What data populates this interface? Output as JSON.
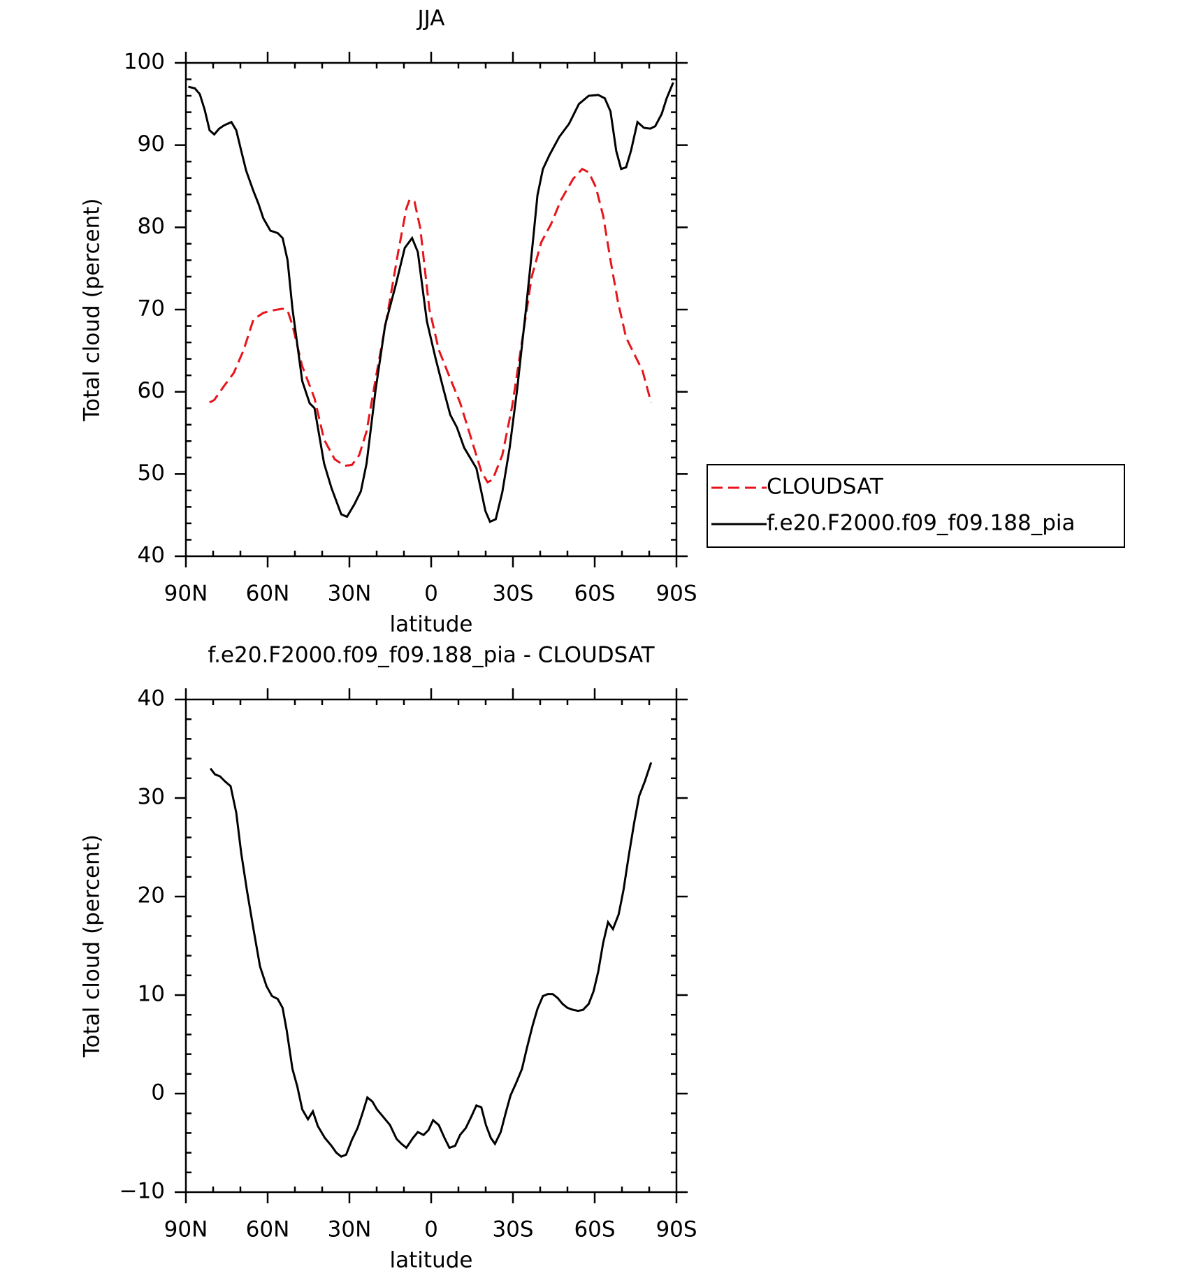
{
  "chart_data": [
    {
      "type": "line",
      "title": "JJA",
      "xlabel": "latitude",
      "ylabel": "Total cloud (percent)",
      "xlim": [
        90,
        -90
      ],
      "xticks": [
        {
          "value": 90,
          "label": "90N"
        },
        {
          "value": 60,
          "label": "60N"
        },
        {
          "value": 30,
          "label": "30N"
        },
        0,
        {
          "value": -30,
          "label": "30S"
        },
        {
          "value": -60,
          "label": "60S"
        },
        {
          "value": -90,
          "label": "90S"
        }
      ],
      "x_minor_per_major": 3,
      "ylim": [
        40,
        100
      ],
      "yticks": [
        40,
        50,
        60,
        70,
        80,
        90,
        100
      ],
      "y_minor_per_major": 5,
      "legend": "outside-right",
      "series": [
        {
          "name": "CLOUDSAT",
          "color": "#e8141b",
          "dash": true,
          "x": [
            81.3,
            79.6,
            76.0,
            72.4,
            68.8,
            65.2,
            61.6,
            58.1,
            54.5,
            52.7,
            50.9,
            47.3,
            42.8,
            39.3,
            35.4,
            31.8,
            29.1,
            26.4,
            23.7,
            20.1,
            15.7,
            12.1,
            9.1,
            7.9,
            6.1,
            4.0,
            0.7,
            -2.8,
            -7.0,
            -10.6,
            -14.8,
            -18.4,
            -20.7,
            -22.5,
            -26.1,
            -29.7,
            -33.3,
            -36.9,
            -40.4,
            -44.0,
            -47.6,
            -52.1,
            -55.4,
            -57.8,
            -60.4,
            -63.1,
            -65.8,
            -68.5,
            -71.5,
            -74.5,
            -77.5,
            -80.7
          ],
          "values": [
            58.7,
            59.0,
            60.7,
            62.3,
            65.1,
            68.8,
            69.6,
            69.9,
            70.1,
            69.9,
            68.1,
            63.1,
            59.2,
            54.2,
            51.8,
            51.0,
            51.1,
            52.3,
            55.2,
            62.1,
            70.1,
            77.0,
            82.3,
            83.4,
            83.1,
            79.9,
            70.1,
            65.1,
            61.6,
            58.7,
            54.2,
            50.3,
            49.0,
            49.3,
            52.3,
            58.2,
            66.1,
            74.0,
            78.2,
            80.4,
            83.3,
            85.9,
            87.1,
            86.7,
            84.9,
            81.4,
            76.0,
            71.0,
            66.6,
            64.6,
            62.6,
            58.7
          ]
        },
        {
          "name": "f.e20.F2000.f09_f09.188_pia",
          "color": "#000000",
          "dash": false,
          "x": [
            89.1,
            86.7,
            84.9,
            83.1,
            81.3,
            79.6,
            77.8,
            76.0,
            73.3,
            71.5,
            69.7,
            67.9,
            65.2,
            63.4,
            61.6,
            59.0,
            56.3,
            54.5,
            52.7,
            50.9,
            47.3,
            44.6,
            42.8,
            39.3,
            36.6,
            33.0,
            30.9,
            28.2,
            25.8,
            23.7,
            20.4,
            16.9,
            13.0,
            9.7,
            7.0,
            4.9,
            1.6,
            -1.6,
            -4.6,
            -7.0,
            -9.4,
            -12.1,
            -16.6,
            -19.9,
            -21.6,
            -23.7,
            -26.1,
            -28.8,
            -31.5,
            -34.8,
            -37.5,
            -39.0,
            -41.0,
            -43.4,
            -47.0,
            -50.6,
            -54.2,
            -57.8,
            -61.3,
            -63.7,
            -65.8,
            -67.9,
            -69.7,
            -71.5,
            -73.3,
            -75.7,
            -78.1,
            -80.4,
            -82.2,
            -84.6,
            -86.4,
            -88.8
          ],
          "values": [
            97.1,
            96.9,
            96.2,
            94.3,
            91.8,
            91.3,
            92.0,
            92.4,
            92.8,
            91.8,
            89.3,
            86.9,
            84.4,
            82.9,
            81.1,
            79.6,
            79.3,
            78.7,
            76.0,
            70.1,
            61.3,
            58.6,
            58.0,
            51.3,
            48.3,
            45.1,
            44.8,
            46.3,
            47.9,
            51.3,
            60.2,
            68.1,
            73.0,
            77.5,
            78.7,
            77.0,
            68.6,
            64.1,
            60.2,
            57.2,
            55.7,
            53.2,
            50.7,
            45.5,
            44.2,
            44.5,
            47.8,
            53.2,
            60.2,
            70.1,
            78.9,
            83.9,
            87.1,
            88.8,
            91.0,
            92.6,
            95.0,
            96.0,
            96.1,
            95.7,
            94.1,
            89.3,
            87.1,
            87.3,
            89.3,
            92.8,
            92.1,
            92.0,
            92.3,
            93.8,
            95.7,
            97.6
          ]
        }
      ]
    },
    {
      "type": "line",
      "title": "f.e20.F2000.f09_f09.188_pia - CLOUDSAT",
      "xlabel": "latitude",
      "ylabel": "Total cloud (percent)",
      "xlim": [
        90,
        -90
      ],
      "xticks": [
        {
          "value": 90,
          "label": "90N"
        },
        {
          "value": 60,
          "label": "60N"
        },
        {
          "value": 30,
          "label": "30N"
        },
        0,
        {
          "value": -30,
          "label": "30S"
        },
        {
          "value": -60,
          "label": "60S"
        },
        {
          "value": -90,
          "label": "90S"
        }
      ],
      "x_minor_per_major": 3,
      "ylim": [
        -10,
        40
      ],
      "yticks": [
        {
          "value": -10,
          "label": "−10"
        },
        0,
        10,
        20,
        30,
        40
      ],
      "y_minor_per_major": 5,
      "series": [
        {
          "color": "#000000",
          "dash": false,
          "x": [
            81.0,
            79.3,
            77.5,
            75.7,
            73.6,
            71.5,
            69.7,
            67.6,
            65.2,
            62.8,
            60.4,
            58.4,
            56.3,
            54.5,
            53.0,
            50.9,
            49.1,
            47.3,
            45.2,
            43.4,
            41.6,
            39.0,
            36.6,
            34.8,
            33.0,
            31.2,
            29.1,
            27.0,
            25.2,
            23.4,
            21.6,
            19.9,
            17.5,
            15.1,
            12.7,
            10.9,
            9.1,
            6.7,
            4.9,
            2.8,
            1.0,
            -0.7,
            -2.8,
            -4.9,
            -6.7,
            -8.8,
            -10.6,
            -12.7,
            -14.8,
            -16.6,
            -18.4,
            -20.1,
            -21.9,
            -23.4,
            -25.5,
            -27.3,
            -29.1,
            -31.2,
            -33.3,
            -35.1,
            -37.2,
            -39.0,
            -41.0,
            -42.8,
            -44.6,
            -46.4,
            -48.2,
            -50.0,
            -52.1,
            -53.9,
            -55.7,
            -57.8,
            -59.6,
            -61.3,
            -63.1,
            -64.9,
            -66.7,
            -68.8,
            -70.6,
            -72.4,
            -74.5,
            -76.3,
            -78.4,
            -80.7
          ],
          "values": [
            33.0,
            32.4,
            32.2,
            31.7,
            31.2,
            28.5,
            24.4,
            20.6,
            16.7,
            12.9,
            10.9,
            9.9,
            9.6,
            8.7,
            6.4,
            2.5,
            0.7,
            -1.6,
            -2.6,
            -1.8,
            -3.3,
            -4.5,
            -5.3,
            -6.0,
            -6.4,
            -6.2,
            -4.7,
            -3.5,
            -2.0,
            -0.4,
            -0.8,
            -1.6,
            -2.4,
            -3.2,
            -4.6,
            -5.1,
            -5.5,
            -4.5,
            -3.9,
            -4.2,
            -3.7,
            -2.7,
            -3.2,
            -4.5,
            -5.5,
            -5.3,
            -4.2,
            -3.5,
            -2.3,
            -1.2,
            -1.4,
            -3.2,
            -4.5,
            -5.1,
            -3.9,
            -2.0,
            -0.2,
            1.1,
            2.5,
            4.6,
            6.9,
            8.6,
            9.9,
            10.1,
            10.1,
            9.7,
            9.1,
            8.7,
            8.5,
            8.4,
            8.5,
            9.1,
            10.4,
            12.4,
            15.3,
            17.4,
            16.7,
            18.2,
            20.7,
            24.0,
            27.5,
            30.2,
            31.7,
            33.6
          ]
        }
      ]
    }
  ]
}
